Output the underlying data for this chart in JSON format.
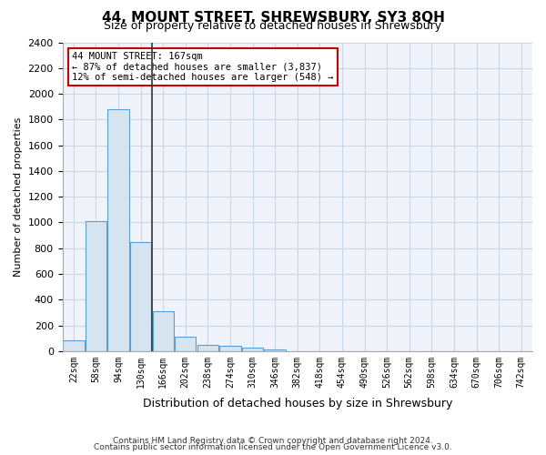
{
  "title": "44, MOUNT STREET, SHREWSBURY, SY3 8QH",
  "subtitle": "Size of property relative to detached houses in Shrewsbury",
  "xlabel": "Distribution of detached houses by size in Shrewsbury",
  "ylabel": "Number of detached properties",
  "footnote1": "Contains HM Land Registry data © Crown copyright and database right 2024.",
  "footnote2": "Contains public sector information licensed under the Open Government Licence v3.0.",
  "bin_labels": [
    "22sqm",
    "58sqm",
    "94sqm",
    "130sqm",
    "166sqm",
    "202sqm",
    "238sqm",
    "274sqm",
    "310sqm",
    "346sqm",
    "382sqm",
    "418sqm",
    "454sqm",
    "490sqm",
    "526sqm",
    "562sqm",
    "598sqm",
    "634sqm",
    "670sqm",
    "706sqm",
    "742sqm"
  ],
  "bar_values": [
    80,
    1010,
    1880,
    850,
    310,
    115,
    50,
    40,
    25,
    15,
    0,
    0,
    0,
    0,
    0,
    0,
    0,
    0,
    0,
    0,
    0
  ],
  "bar_color": "#d6e4f0",
  "bar_edge_color": "#5a9fd4",
  "grid_color": "#c8d8e8",
  "bg_color": "#f0f4fa",
  "ylim": [
    0,
    2400
  ],
  "yticks": [
    0,
    200,
    400,
    600,
    800,
    1000,
    1200,
    1400,
    1600,
    1800,
    2000,
    2200,
    2400
  ],
  "vline_x_index": 4,
  "vline_color": "#333333",
  "annotation_text_line1": "44 MOUNT STREET: 167sqm",
  "annotation_text_line2": "← 87% of detached houses are smaller (3,837)",
  "annotation_text_line3": "12% of semi-detached houses are larger (548) →",
  "annotation_box_color": "#ffffff",
  "annotation_box_edge": "#cc0000"
}
